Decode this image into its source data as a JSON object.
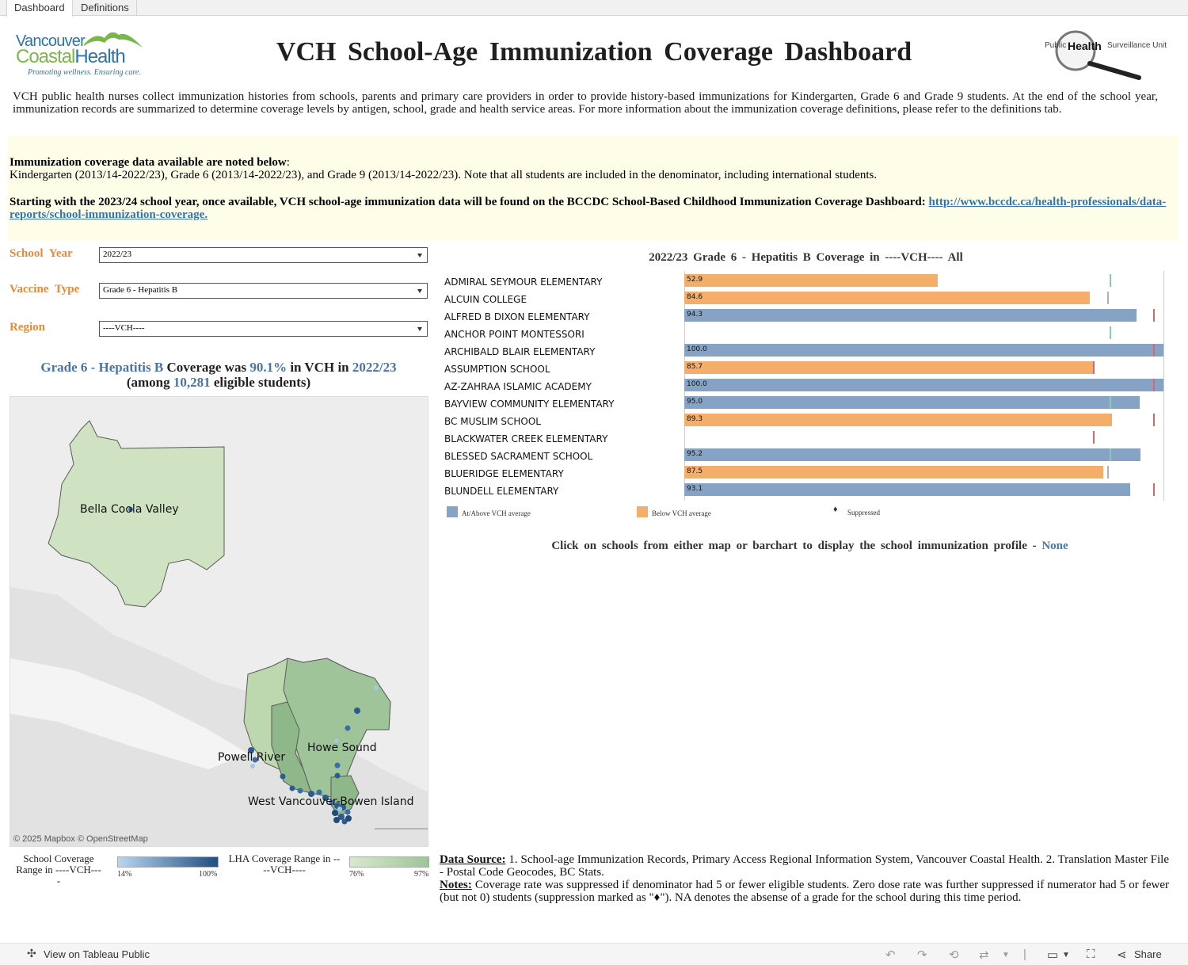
{
  "tabs": [
    "Dashboard",
    "Definitions"
  ],
  "logo_vch": {
    "line1": "Vancouver",
    "line2a": "Coastal",
    "line2b": "Health",
    "tagline": "Promoting wellness. Ensuring care."
  },
  "logo_phsu": {
    "left": "Public",
    "middle": "Health",
    "right": "Surveillance Unit"
  },
  "title": "VCH School-Age Immunization Coverage Dashboard",
  "intro": "VCH public health nurses collect immunization histories from schools, parents and primary care providers in order to provide history-based immunizations for Kindergarten, Grade 6 and Grade 9 students. At the end of the school year, immunization records are summarized to determine coverage levels by antigen, school, grade and health service areas. For more information about the immunization coverage definitions, please refer to the definitions tab.",
  "notice": {
    "heading": "Immunization coverage data available are noted below",
    "heading_colon": ":",
    "line1": "Kindergarten (2013/14-2022/23), Grade 6 (2013/14-2022/23), and Grade 9 (2013/14-2022/23). Note that all students are included in the denominator, including international students.",
    "line2": "Starting with the 2023/24 school year, once available, VCH school-age immunization data will be found on the BCCDC School-Based Childhood Immunization Coverage Dashboard: ",
    "link": "http://www.bccdc.ca/health-professionals/data-reports/school-immunization-coverage."
  },
  "filters": {
    "school_year": {
      "label": "School Year",
      "value": "2022/23"
    },
    "vaccine_type": {
      "label": "Vaccine Type",
      "value": "Grade 6 - Hepatitis B"
    },
    "region": {
      "label": "Region",
      "value": "----VCH----"
    }
  },
  "summary": {
    "vaccine": "Grade 6 - Hepatitis B",
    "t1": "Coverage was",
    "pct": "90.1%",
    "t2": "in VCH in",
    "year": "2022/23",
    "t3": "(among",
    "count": "10,281",
    "t4": "eligible students)"
  },
  "map": {
    "labels": [
      "Bella Coola Valley",
      "Howe Sound",
      "Powell River",
      "West Vancouver-Bowen Island"
    ],
    "attribution": "© 2025 Mapbox  © OpenStreetMap"
  },
  "map_legend": {
    "school": {
      "title": "School Coverage Range in ----VCH----",
      "min": "14%",
      "max": "100%"
    },
    "lha": {
      "title": "LHA Coverage Range in ----VCH----",
      "min": "76%",
      "max": "97%"
    }
  },
  "chart_data": {
    "type": "bar",
    "title": "2022/23 Grade 6 - Hepatitis B Coverage in ----VCH---- All",
    "xlim": [
      0,
      100
    ],
    "categories": [
      "ADMIRAL SEYMOUR ELEMENTARY",
      "ALCUIN COLLEGE",
      "ALFRED B DIXON ELEMENTARY",
      "ANCHOR POINT MONTESSORI",
      "ARCHIBALD BLAIR ELEMENTARY",
      "ASSUMPTION SCHOOL",
      "AZ-ZAHRAA ISLAMIC ACADEMY",
      "BAYVIEW COMMUNITY ELEMENTARY",
      "BC MUSLIM SCHOOL",
      "BLACKWATER CREEK ELEMENTARY",
      "BLESSED SACRAMENT SCHOOL",
      "BLUERIDGE ELEMENTARY",
      "BLUNDELL ELEMENTARY"
    ],
    "values": [
      52.9,
      84.6,
      94.3,
      null,
      100.0,
      85.7,
      100.0,
      95.0,
      89.3,
      null,
      95.2,
      87.5,
      93.1
    ],
    "labels": [
      "52.9",
      "84.6",
      "94.3",
      "",
      "100.0",
      "85.7",
      "100.0",
      "95.0",
      "89.3",
      "",
      "95.2",
      "87.5",
      "93.1"
    ],
    "status": [
      "below",
      "below",
      "above",
      "none",
      "above",
      "below",
      "above",
      "above",
      "below",
      "none",
      "above",
      "below",
      "above"
    ],
    "reference": [
      89,
      88.5,
      98,
      89,
      98,
      85.5,
      98,
      89,
      98,
      85.5,
      89,
      88.5,
      98
    ],
    "reference_color": [
      "#8cc9b3",
      "#b0b0b0",
      "#d9666c",
      "#8cc9b3",
      "#d9666c",
      "#d9666c",
      "#d9666c",
      "#8cc9b3",
      "#d9666c",
      "#d9666c",
      "#8cc9b3",
      "#b0b0b0",
      "#d9666c"
    ],
    "legend": [
      "At/Above VCH average",
      "Below VCH average",
      "Suppressed"
    ],
    "colors": {
      "above": "#86a3c6",
      "below": "#f5ae6a"
    }
  },
  "click_line": {
    "text": "Click on schools from either map or barchart to display the school immunization profile -",
    "value": "None"
  },
  "data_source": {
    "label": "Data Source:",
    "text": " 1. School-age Immunization Records, Primary Access Regional Information System, Vancouver Coastal Health.  2. Translation Master File - Postal Code Geocodes, BC Stats.",
    "notes_label": "Notes:",
    "notes_text": " Coverage rate  was suppressed if denominator had 5 or fewer eligible students. Zero dose rate was further suppressed if numerator had 5 or fewer (but not 0) students (suppression marked as \"♦\"). NA denotes the absense of a grade for the school during this time period."
  },
  "toolbar": {
    "view": "View on Tableau Public",
    "share": "Share"
  }
}
